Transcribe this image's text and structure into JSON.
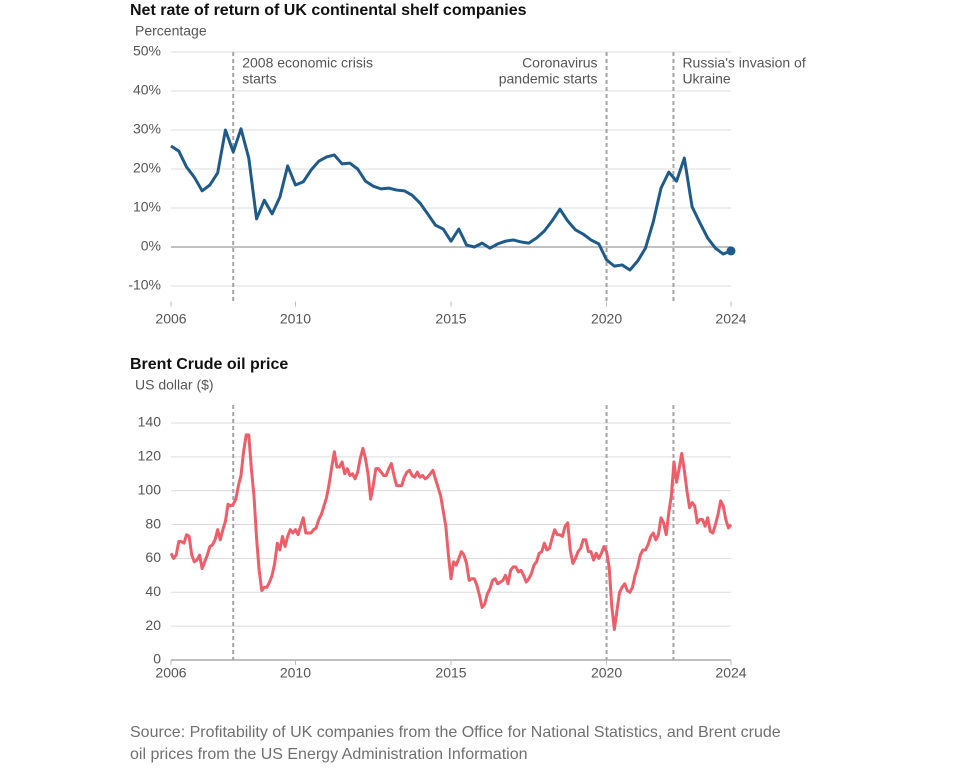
{
  "chart_data": [
    {
      "type": "line",
      "title": "Net rate of return of UK continental shelf companies",
      "y_label": "Percentage",
      "color": "#1f5b8a",
      "end_marker": true,
      "grid": true,
      "x": [
        2006,
        2006.25,
        2006.5,
        2006.75,
        2007,
        2007.25,
        2007.5,
        2007.75,
        2008,
        2008.25,
        2008.5,
        2008.75,
        2009,
        2009.25,
        2009.5,
        2009.75,
        2010,
        2010.25,
        2010.5,
        2010.75,
        2011,
        2011.25,
        2011.5,
        2011.75,
        2012,
        2012.25,
        2012.5,
        2012.75,
        2013,
        2013.25,
        2013.5,
        2013.75,
        2014,
        2014.25,
        2014.5,
        2014.75,
        2015,
        2015.25,
        2015.5,
        2015.75,
        2016,
        2016.25,
        2016.5,
        2016.75,
        2017,
        2017.25,
        2017.5,
        2017.75,
        2018,
        2018.25,
        2018.5,
        2018.75,
        2019,
        2019.25,
        2019.5,
        2019.75,
        2020,
        2020.25,
        2020.5,
        2020.75,
        2021,
        2021.25,
        2021.5,
        2021.75,
        2022,
        2022.25,
        2022.5,
        2022.75,
        2023,
        2023.25,
        2023.5,
        2023.75,
        2024
      ],
      "values": [
        25.9,
        24.6,
        20.5,
        17.9,
        14.4,
        15.9,
        19,
        30,
        24.4,
        30.3,
        22.8,
        7.2,
        12,
        8.5,
        12.8,
        20.8,
        15.9,
        16.7,
        19.7,
        22,
        23.1,
        23.6,
        21.3,
        21.5,
        20,
        16.9,
        15.6,
        14.9,
        15.1,
        14.6,
        14.4,
        13.3,
        11.3,
        8.5,
        5.6,
        4.6,
        1.5,
        4.6,
        0.5,
        0,
        1,
        -0.3,
        0.8,
        1.5,
        1.8,
        1.3,
        1,
        2.3,
        4.1,
        6.7,
        9.7,
        6.7,
        4.4,
        3.3,
        1.8,
        0.8,
        -3.3,
        -4.9,
        -4.6,
        -5.9,
        -3.6,
        -0.3,
        6.4,
        15.1,
        19.2,
        16.9,
        22.8,
        10.3,
        6.2,
        2.3,
        -0.3,
        -1.8,
        -1
      ],
      "xlim": [
        2006,
        2024
      ],
      "xticks": [
        2006,
        2010,
        2015,
        2020,
        2024
      ],
      "ylim": [
        -14,
        50
      ],
      "yticks": [
        {
          "value": -10,
          "label": "-10%"
        },
        {
          "value": 0,
          "label": "0%"
        },
        {
          "value": 10,
          "label": "10%"
        },
        {
          "value": 20,
          "label": "20%"
        },
        {
          "value": 30,
          "label": "30%"
        },
        {
          "value": 40,
          "label": "40%"
        },
        {
          "value": 50,
          "label": "50%"
        }
      ],
      "annotations": [
        {
          "x": 2008,
          "lines": [
            "2008 economic crisis",
            "starts"
          ]
        },
        {
          "x": 2020,
          "lines": [
            "Coronavirus",
            "pandemic starts"
          ]
        },
        {
          "x": 2022.15,
          "lines": [
            "Russia's invasion of",
            "Ukraine"
          ]
        }
      ]
    },
    {
      "type": "line",
      "title": "Brent Crude oil price",
      "y_label": "US dollar ($)",
      "color": "#ef5e68",
      "end_marker": false,
      "grid": true,
      "x": [
        2006,
        2006.083,
        2006.167,
        2006.25,
        2006.333,
        2006.417,
        2006.5,
        2006.583,
        2006.667,
        2006.75,
        2006.833,
        2006.917,
        2007,
        2007.083,
        2007.167,
        2007.25,
        2007.333,
        2007.417,
        2007.5,
        2007.583,
        2007.667,
        2007.75,
        2007.833,
        2007.917,
        2008,
        2008.083,
        2008.167,
        2008.25,
        2008.333,
        2008.417,
        2008.5,
        2008.583,
        2008.667,
        2008.75,
        2008.833,
        2008.917,
        2009,
        2009.083,
        2009.167,
        2009.25,
        2009.333,
        2009.417,
        2009.5,
        2009.583,
        2009.667,
        2009.75,
        2009.833,
        2009.917,
        2010,
        2010.083,
        2010.167,
        2010.25,
        2010.333,
        2010.417,
        2010.5,
        2010.583,
        2010.667,
        2010.75,
        2010.833,
        2010.917,
        2011,
        2011.083,
        2011.167,
        2011.25,
        2011.333,
        2011.417,
        2011.5,
        2011.583,
        2011.667,
        2011.75,
        2011.833,
        2011.917,
        2012,
        2012.083,
        2012.167,
        2012.25,
        2012.333,
        2012.417,
        2012.5,
        2012.583,
        2012.667,
        2012.75,
        2012.833,
        2012.917,
        2013,
        2013.083,
        2013.167,
        2013.25,
        2013.333,
        2013.417,
        2013.5,
        2013.583,
        2013.667,
        2013.75,
        2013.833,
        2013.917,
        2014,
        2014.083,
        2014.167,
        2014.25,
        2014.333,
        2014.417,
        2014.5,
        2014.583,
        2014.667,
        2014.75,
        2014.833,
        2014.917,
        2015,
        2015.083,
        2015.167,
        2015.25,
        2015.333,
        2015.417,
        2015.5,
        2015.583,
        2015.667,
        2015.75,
        2015.833,
        2015.917,
        2016,
        2016.083,
        2016.167,
        2016.25,
        2016.333,
        2016.417,
        2016.5,
        2016.583,
        2016.667,
        2016.75,
        2016.833,
        2016.917,
        2017,
        2017.083,
        2017.167,
        2017.25,
        2017.333,
        2017.417,
        2017.5,
        2017.583,
        2017.667,
        2017.75,
        2017.833,
        2017.917,
        2018,
        2018.083,
        2018.167,
        2018.25,
        2018.333,
        2018.417,
        2018.5,
        2018.583,
        2018.667,
        2018.75,
        2018.833,
        2018.917,
        2019,
        2019.083,
        2019.167,
        2019.25,
        2019.333,
        2019.417,
        2019.5,
        2019.583,
        2019.667,
        2019.75,
        2019.833,
        2019.917,
        2020,
        2020.083,
        2020.167,
        2020.25,
        2020.333,
        2020.417,
        2020.5,
        2020.583,
        2020.667,
        2020.75,
        2020.833,
        2020.917,
        2021,
        2021.083,
        2021.167,
        2021.25,
        2021.333,
        2021.417,
        2021.5,
        2021.583,
        2021.667,
        2021.75,
        2021.833,
        2021.917,
        2022,
        2022.083,
        2022.167,
        2022.25,
        2022.333,
        2022.417,
        2022.5,
        2022.583,
        2022.667,
        2022.75,
        2022.833,
        2022.917,
        2023,
        2023.083,
        2023.167,
        2023.25,
        2023.333,
        2023.417,
        2023.5,
        2023.583,
        2023.667,
        2023.75,
        2023.833,
        2023.917,
        2024
      ],
      "values": [
        63,
        60,
        62,
        70,
        70,
        69,
        74,
        73,
        62,
        58,
        59,
        62,
        54,
        58,
        62,
        67,
        68,
        71,
        77,
        71,
        77,
        82,
        92,
        91,
        92,
        95,
        103,
        109,
        123,
        133,
        133,
        113,
        97,
        72,
        53,
        41,
        43,
        43,
        46,
        50,
        57,
        69,
        65,
        73,
        67,
        73,
        77,
        75,
        77,
        74,
        79,
        84,
        75,
        75,
        75,
        77,
        78,
        83,
        86,
        91,
        96,
        104,
        114,
        123,
        114,
        114,
        117,
        110,
        113,
        109,
        110,
        107,
        111,
        119,
        125,
        119,
        110,
        95,
        103,
        113,
        113,
        111,
        109,
        109,
        113,
        116,
        109,
        103,
        103,
        103,
        108,
        111,
        112,
        109,
        108,
        111,
        108,
        109,
        107,
        108,
        110,
        112,
        107,
        102,
        97,
        88,
        79,
        62,
        48,
        58,
        56,
        60,
        64,
        62,
        57,
        47,
        48,
        48,
        44,
        38,
        31,
        33,
        39,
        42,
        47,
        48,
        45,
        46,
        47,
        50,
        45,
        53,
        55,
        55,
        52,
        53,
        50,
        46,
        48,
        51,
        56,
        58,
        63,
        64,
        69,
        65,
        66,
        72,
        77,
        74,
        74,
        73,
        79,
        81,
        65,
        57,
        60,
        64,
        66,
        71,
        71,
        64,
        64,
        59,
        63,
        60,
        63,
        67,
        64,
        55,
        32,
        18,
        29,
        40,
        43,
        45,
        41,
        40,
        43,
        50,
        55,
        62,
        65,
        65,
        68,
        73,
        75,
        71,
        74,
        84,
        81,
        74,
        87,
        97,
        117,
        105,
        113,
        122,
        112,
        100,
        90,
        93,
        91,
        81,
        83,
        83,
        79,
        84,
        76,
        75,
        80,
        86,
        94,
        91,
        83,
        78,
        80
      ],
      "xlim": [
        2006,
        2024
      ],
      "xticks": [
        2006,
        2010,
        2015,
        2020,
        2024
      ],
      "ylim": [
        0,
        145
      ],
      "yticks": [
        0,
        20,
        40,
        60,
        80,
        100,
        120,
        140
      ],
      "event_lines": [
        2008,
        2020,
        2022.15
      ]
    }
  ],
  "source": [
    "Source: Profitability of UK companies from the Office for National Statistics, and Brent crude",
    "oil prices from the US Energy Administration Information"
  ]
}
